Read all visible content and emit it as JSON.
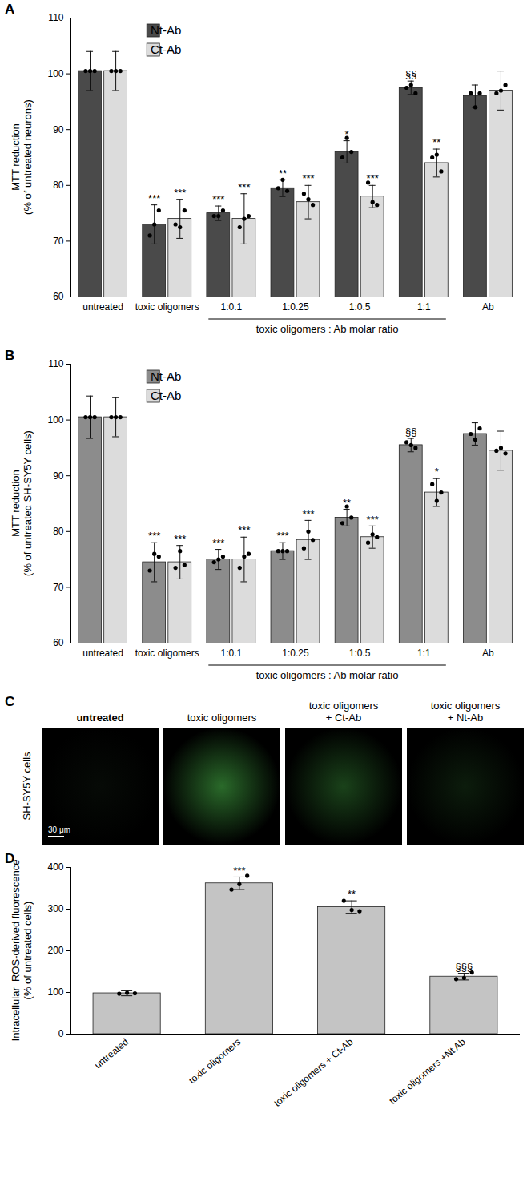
{
  "chart_data": [
    {
      "panel": "A",
      "type": "bar",
      "ylabel": [
        "MTT reduction",
        "(% of untreated neurons)"
      ],
      "categories": [
        "untreated",
        "toxic oligomers",
        "1:0.1",
        "1:0.25",
        "1:0.5",
        "1:1",
        "Ab"
      ],
      "annotations": [
        {
          "text": "toxic oligomers : Ab molar ratio",
          "from": "1:0.1",
          "to": "1:1"
        }
      ],
      "ylim": [
        60,
        110
      ],
      "yticks": [
        60,
        70,
        80,
        90,
        100,
        110
      ],
      "legend": "top-left",
      "series": [
        {
          "name": "Nt-Ab",
          "color": "#4a4a4a",
          "values": [
            100.5,
            73,
            75,
            79.5,
            86,
            97.5,
            96
          ],
          "error": [
            3.5,
            3.5,
            1.3,
            1.5,
            2,
            1.2,
            2
          ],
          "points": [
            [
              100.5,
              100.5,
              100.5
            ],
            [
              71,
              73,
              75.5
            ],
            [
              74.5,
              74.5,
              75.5
            ],
            [
              79.5,
              81,
              79
            ],
            [
              85,
              88.5,
              86
            ],
            [
              97.5,
              98,
              96.5
            ],
            [
              96.5,
              94,
              96.5
            ]
          ],
          "significance": [
            null,
            "***",
            "***",
            "**",
            "*",
            "§§",
            null
          ]
        },
        {
          "name": "Ct-Ab",
          "color": "#dcdcdc",
          "values": [
            100.5,
            74,
            74,
            77,
            78,
            84,
            97
          ],
          "error": [
            3.5,
            3.5,
            4.5,
            3,
            2,
            2.5,
            3.5
          ],
          "points": [
            [
              100.5,
              100.5,
              100.5
            ],
            [
              73,
              72.5,
              75.5
            ],
            [
              72.5,
              74,
              74.5
            ],
            [
              78.5,
              77.5,
              76.5
            ],
            [
              80.5,
              77,
              76.5
            ],
            [
              85,
              85.5,
              82.5
            ],
            [
              96.5,
              97,
              98
            ]
          ],
          "significance": [
            null,
            "***",
            "***",
            "***",
            "***",
            "**",
            null
          ]
        }
      ]
    },
    {
      "panel": "B",
      "type": "bar",
      "ylabel": [
        "MTT reduction",
        "(% of untreated SH-SY5Y cells)"
      ],
      "categories": [
        "untreated",
        "toxic oligomers",
        "1:0.1",
        "1:0.25",
        "1:0.5",
        "1:1",
        "Ab"
      ],
      "annotations": [
        {
          "text": "toxic oligomers : Ab molar ratio",
          "from": "1:0.1",
          "to": "1:1"
        }
      ],
      "ylim": [
        60,
        110
      ],
      "yticks": [
        60,
        70,
        80,
        90,
        100,
        110
      ],
      "legend": "top-left",
      "series": [
        {
          "name": "Nt-Ab",
          "color": "#8c8c8c",
          "values": [
            100.5,
            74.5,
            75,
            76.5,
            82.5,
            95.5,
            97.5
          ],
          "error": [
            3.8,
            3.5,
            1.8,
            1.5,
            1.5,
            1.2,
            2
          ],
          "points": [
            [
              100.5,
              100.5,
              100.5
            ],
            [
              73,
              76,
              75.5
            ],
            [
              74.5,
              75,
              75.5
            ],
            [
              76.5,
              76.5,
              76.5
            ],
            [
              81.5,
              84.5,
              82.5
            ],
            [
              96,
              95.5,
              95
            ],
            [
              97.5,
              96.5,
              98.5
            ]
          ],
          "significance": [
            null,
            "***",
            "***",
            "***",
            "**",
            "§§",
            null
          ]
        },
        {
          "name": "Ct-Ab",
          "color": "#dcdcdc",
          "values": [
            100.5,
            74.5,
            75,
            78.5,
            79,
            87,
            94.5
          ],
          "error": [
            3.5,
            3,
            4,
            3.5,
            2,
            2.5,
            3.5
          ],
          "points": [
            [
              100.5,
              100.5,
              100.5
            ],
            [
              73.5,
              76.5,
              74
            ],
            [
              73.5,
              75.5,
              76
            ],
            [
              77,
              80,
              78.5
            ],
            [
              78,
              79.5,
              79
            ],
            [
              88.5,
              85.5,
              87
            ],
            [
              94.5,
              95,
              94
            ]
          ],
          "significance": [
            null,
            "***",
            "***",
            "***",
            "***",
            "*",
            null
          ]
        }
      ]
    },
    {
      "panel": "C",
      "type": "image",
      "categories": [
        "untreated",
        "toxic oligomers",
        "toxic oligomers + Ct-Ab",
        "toxic oligomers + Nt-Ab"
      ],
      "row_label": "SH-SY5Y cells",
      "scale_bar": "30 μm",
      "colors": [
        "#060a06",
        "#2a6a2a",
        "#1a421a",
        "#0c1c0c"
      ]
    },
    {
      "panel": "D",
      "type": "bar",
      "ylabel": [
        "Intracellular  ROS-derived fluorescence",
        "(% of untreated cells)"
      ],
      "categories": [
        "untreated",
        "toxic oligomers",
        "toxic oligomers + Ct-Ab",
        "toxic oligomers +Nt Ab"
      ],
      "ylim": [
        0,
        400
      ],
      "yticks": [
        0,
        100,
        200,
        300,
        400
      ],
      "series": [
        {
          "name": "",
          "color": "#c4c4c4",
          "values": [
            98,
            362,
            305,
            138
          ],
          "error": [
            6,
            15,
            15,
            8
          ],
          "points": [
            [
              97,
              99,
              98
            ],
            [
              347,
              360,
              380
            ],
            [
              320,
              298,
              295
            ],
            [
              132,
              135,
              148
            ]
          ],
          "significance": [
            null,
            "***",
            "**",
            "§§§"
          ]
        }
      ]
    }
  ]
}
